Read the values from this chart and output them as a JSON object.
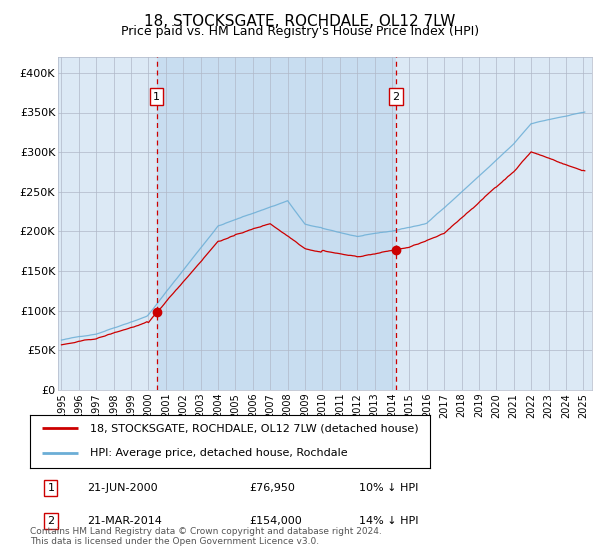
{
  "title": "18, STOCKSGATE, ROCHDALE, OL12 7LW",
  "subtitle": "Price paid vs. HM Land Registry's House Price Index (HPI)",
  "legend_line1": "18, STOCKSGATE, ROCHDALE, OL12 7LW (detached house)",
  "legend_line2": "HPI: Average price, detached house, Rochdale",
  "annotation1": {
    "label": "1",
    "date": "21-JUN-2000",
    "price": "£76,950",
    "pct": "10% ↓ HPI",
    "x_year": 2000.47
  },
  "annotation2": {
    "label": "2",
    "date": "21-MAR-2014",
    "price": "£154,000",
    "pct": "14% ↓ HPI",
    "x_year": 2014.22
  },
  "footer": "Contains HM Land Registry data © Crown copyright and database right 2024.\nThis data is licensed under the Open Government Licence v3.0.",
  "hpi_color": "#6baed6",
  "price_color": "#cc0000",
  "annotation_color": "#cc0000",
  "plot_bg": "#dce9f5",
  "highlight_bg": "#c8ddf0",
  "ylim": [
    0,
    420000
  ],
  "yticks": [
    0,
    50000,
    100000,
    150000,
    200000,
    250000,
    300000,
    350000,
    400000
  ],
  "xlim_start": 1994.8,
  "xlim_end": 2025.5,
  "xtick_years": [
    1995,
    1996,
    1997,
    1998,
    1999,
    2000,
    2001,
    2002,
    2003,
    2004,
    2005,
    2006,
    2007,
    2008,
    2009,
    2010,
    2011,
    2012,
    2013,
    2014,
    2015,
    2016,
    2017,
    2018,
    2019,
    2020,
    2021,
    2022,
    2023,
    2024,
    2025
  ]
}
